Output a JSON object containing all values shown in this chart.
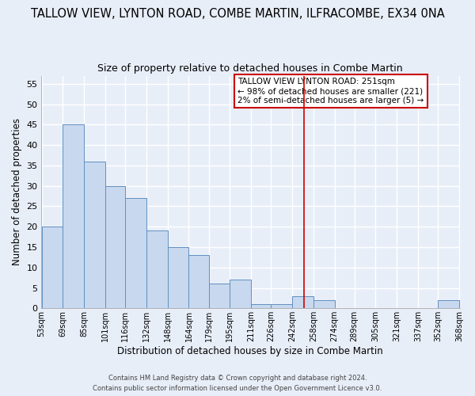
{
  "title": "TALLOW VIEW, LYNTON ROAD, COMBE MARTIN, ILFRACOMBE, EX34 0NA",
  "subtitle": "Size of property relative to detached houses in Combe Martin",
  "xlabel": "Distribution of detached houses by size in Combe Martin",
  "ylabel": "Number of detached properties",
  "bar_edges": [
    53,
    69,
    85,
    101,
    116,
    132,
    148,
    164,
    179,
    195,
    211,
    226,
    242,
    258,
    274,
    289,
    305,
    321,
    337,
    352,
    368
  ],
  "bar_heights": [
    20,
    45,
    36,
    30,
    27,
    19,
    15,
    13,
    6,
    7,
    1,
    1,
    3,
    2,
    0,
    0,
    0,
    0,
    0,
    2
  ],
  "bar_color": "#c8d8ee",
  "bar_edgecolor": "#6090c0",
  "vline_x": 251,
  "vline_color": "#cc0000",
  "ylim": [
    0,
    57
  ],
  "yticks": [
    0,
    5,
    10,
    15,
    20,
    25,
    30,
    35,
    40,
    45,
    50,
    55
  ],
  "xtick_labels": [
    "53sqm",
    "69sqm",
    "85sqm",
    "101sqm",
    "116sqm",
    "132sqm",
    "148sqm",
    "164sqm",
    "179sqm",
    "195sqm",
    "211sqm",
    "226sqm",
    "242sqm",
    "258sqm",
    "274sqm",
    "289sqm",
    "305sqm",
    "321sqm",
    "337sqm",
    "352sqm",
    "368sqm"
  ],
  "annotation_title": "TALLOW VIEW LYNTON ROAD: 251sqm",
  "annotation_line1": "← 98% of detached houses are smaller (221)",
  "annotation_line2": "2% of semi-detached houses are larger (5) →",
  "footer_line1": "Contains HM Land Registry data © Crown copyright and database right 2024.",
  "footer_line2": "Contains public sector information licensed under the Open Government Licence v3.0.",
  "background_color": "#e8eef8",
  "grid_color": "#ffffff",
  "title_fontsize": 10.5,
  "subtitle_fontsize": 9
}
